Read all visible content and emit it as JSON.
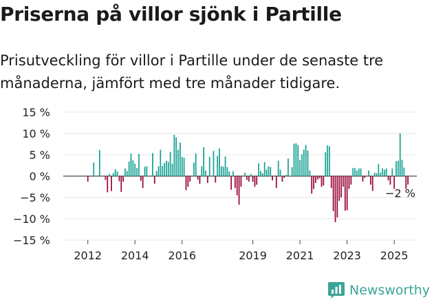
{
  "header": {
    "title": "Priserna på villor sjönk i Partille",
    "subtitle": "Prisutveckling för villor i Partille under de senaste tre månaderna, jämfört med tre månader tidigare."
  },
  "brand": {
    "name": "Newsworthy",
    "icon": "newsworthy-logo-icon",
    "color": "#3aa597"
  },
  "chart_data": {
    "type": "bar",
    "x_start": "2011-01",
    "x_end": "2025-12",
    "x_label_months": [
      "2012-01",
      "2014-01",
      "2016-01",
      "2019-01",
      "2021-01",
      "2023-01",
      "2025-01"
    ],
    "x_tick_labels": [
      "2012",
      "2014",
      "2016",
      "2019",
      "2021",
      "2023",
      "2025"
    ],
    "ylim": [
      -15,
      15
    ],
    "y_ticks": [
      15,
      10,
      5,
      0,
      -5,
      -10,
      -15
    ],
    "y_tick_labels": [
      "15 %",
      "10 %",
      "5 %",
      "0 %",
      "−5 %",
      "−10 %",
      "−15 %"
    ],
    "grid": true,
    "colors": {
      "positive": "#1aa393",
      "negative": "#9c0a3c"
    },
    "series": [
      {
        "values": [
          {
            "x": "2012-01",
            "y": -1.3
          },
          {
            "x": "2012-04",
            "y": 3.2
          },
          {
            "x": "2012-07",
            "y": 6.1
          },
          {
            "x": "2012-10",
            "y": -0.9
          },
          {
            "x": "2012-11",
            "y": -3.8
          },
          {
            "x": "2012-12",
            "y": 0.5
          },
          {
            "x": "2013-01",
            "y": -3.5
          },
          {
            "x": "2013-02",
            "y": 0.7
          },
          {
            "x": "2013-03",
            "y": 1.6
          },
          {
            "x": "2013-04",
            "y": 1.1
          },
          {
            "x": "2013-05",
            "y": -1.2
          },
          {
            "x": "2013-06",
            "y": -3.7
          },
          {
            "x": "2013-07",
            "y": -1.3
          },
          {
            "x": "2013-08",
            "y": 1.8
          },
          {
            "x": "2013-09",
            "y": 1.2
          },
          {
            "x": "2013-10",
            "y": 3.4
          },
          {
            "x": "2013-11",
            "y": 5.3
          },
          {
            "x": "2013-12",
            "y": 3.7
          },
          {
            "x": "2014-01",
            "y": 2.9
          },
          {
            "x": "2014-02",
            "y": 1.9
          },
          {
            "x": "2014-03",
            "y": 5.2
          },
          {
            "x": "2014-04",
            "y": -1.1
          },
          {
            "x": "2014-05",
            "y": -2.8
          },
          {
            "x": "2014-06",
            "y": 2.2
          },
          {
            "x": "2014-07",
            "y": 2.3
          },
          {
            "x": "2014-10",
            "y": 5.4
          },
          {
            "x": "2014-11",
            "y": -1.8
          },
          {
            "x": "2014-12",
            "y": 1.2
          },
          {
            "x": "2015-01",
            "y": 2.3
          },
          {
            "x": "2015-02",
            "y": 6.2
          },
          {
            "x": "2015-03",
            "y": 2.4
          },
          {
            "x": "2015-04",
            "y": 3.1
          },
          {
            "x": "2015-05",
            "y": 3.6
          },
          {
            "x": "2015-06",
            "y": 3.3
          },
          {
            "x": "2015-07",
            "y": 5.7
          },
          {
            "x": "2015-08",
            "y": 2.9
          },
          {
            "x": "2015-09",
            "y": 9.7
          },
          {
            "x": "2015-10",
            "y": 9.1
          },
          {
            "x": "2015-11",
            "y": 6.2
          },
          {
            "x": "2015-12",
            "y": 7.9
          },
          {
            "x": "2016-01",
            "y": 4.5
          },
          {
            "x": "2016-02",
            "y": 4.3
          },
          {
            "x": "2016-03",
            "y": -3.3
          },
          {
            "x": "2016-04",
            "y": -2.5
          },
          {
            "x": "2016-05",
            "y": -1.3
          },
          {
            "x": "2016-07",
            "y": 3.2
          },
          {
            "x": "2016-08",
            "y": 5.3
          },
          {
            "x": "2016-09",
            "y": -0.8
          },
          {
            "x": "2016-10",
            "y": -1.8
          },
          {
            "x": "2016-11",
            "y": 2.3
          },
          {
            "x": "2016-12",
            "y": 6.8
          },
          {
            "x": "2017-01",
            "y": 1.3
          },
          {
            "x": "2017-02",
            "y": -1.6
          },
          {
            "x": "2017-03",
            "y": 4.5
          },
          {
            "x": "2017-05",
            "y": 5.9
          },
          {
            "x": "2017-06",
            "y": -1.5
          },
          {
            "x": "2017-07",
            "y": 4.7
          },
          {
            "x": "2017-08",
            "y": 6.5
          },
          {
            "x": "2017-09",
            "y": 2.3
          },
          {
            "x": "2017-10",
            "y": 2.2
          },
          {
            "x": "2017-11",
            "y": 4.6
          },
          {
            "x": "2017-12",
            "y": 2.1
          },
          {
            "x": "2018-01",
            "y": 1.1
          },
          {
            "x": "2018-02",
            "y": -3.2
          },
          {
            "x": "2018-03",
            "y": 1.2
          },
          {
            "x": "2018-04",
            "y": -2.8
          },
          {
            "x": "2018-05",
            "y": -4.5
          },
          {
            "x": "2018-06",
            "y": -6.7
          },
          {
            "x": "2018-07",
            "y": -2.5
          },
          {
            "x": "2018-09",
            "y": 0.8
          },
          {
            "x": "2018-10",
            "y": -0.9
          },
          {
            "x": "2018-11",
            "y": -1.3
          },
          {
            "x": "2018-12",
            "y": 0.5
          },
          {
            "x": "2019-01",
            "y": -1.3
          },
          {
            "x": "2019-02",
            "y": -2.5
          },
          {
            "x": "2019-03",
            "y": -2.0
          },
          {
            "x": "2019-04",
            "y": 3.0
          },
          {
            "x": "2019-05",
            "y": 1.2
          },
          {
            "x": "2019-06",
            "y": 0.7
          },
          {
            "x": "2019-07",
            "y": 3.3
          },
          {
            "x": "2019-08",
            "y": 1.5
          },
          {
            "x": "2019-09",
            "y": 2.3
          },
          {
            "x": "2019-10",
            "y": 2.1
          },
          {
            "x": "2019-11",
            "y": -1.0
          },
          {
            "x": "2020-01",
            "y": -2.8
          },
          {
            "x": "2020-02",
            "y": 3.6
          },
          {
            "x": "2020-03",
            "y": 1.5
          },
          {
            "x": "2020-04",
            "y": -1.3
          },
          {
            "x": "2020-05",
            "y": -0.4
          },
          {
            "x": "2020-06",
            "y": 0.3
          },
          {
            "x": "2020-07",
            "y": 4.1
          },
          {
            "x": "2020-09",
            "y": 2.1
          },
          {
            "x": "2020-10",
            "y": 7.6
          },
          {
            "x": "2020-11",
            "y": 7.7
          },
          {
            "x": "2020-12",
            "y": 7.3
          },
          {
            "x": "2021-01",
            "y": 3.8
          },
          {
            "x": "2021-02",
            "y": 5.1
          },
          {
            "x": "2021-03",
            "y": 6.2
          },
          {
            "x": "2021-04",
            "y": 7.3
          },
          {
            "x": "2021-05",
            "y": 6.0
          },
          {
            "x": "2021-06",
            "y": 1.3
          },
          {
            "x": "2021-07",
            "y": -4.1
          },
          {
            "x": "2021-08",
            "y": -3.0
          },
          {
            "x": "2021-09",
            "y": -1.6
          },
          {
            "x": "2021-10",
            "y": -0.8
          },
          {
            "x": "2021-11",
            "y": -0.5
          },
          {
            "x": "2021-12",
            "y": -2.5
          },
          {
            "x": "2022-01",
            "y": -2.2
          },
          {
            "x": "2022-02",
            "y": 5.6
          },
          {
            "x": "2022-03",
            "y": 7.2
          },
          {
            "x": "2022-04",
            "y": 7.0
          },
          {
            "x": "2022-05",
            "y": -2.8
          },
          {
            "x": "2022-06",
            "y": -8.2
          },
          {
            "x": "2022-07",
            "y": -10.8
          },
          {
            "x": "2022-08",
            "y": -9.7
          },
          {
            "x": "2022-09",
            "y": -5.8
          },
          {
            "x": "2022-10",
            "y": -5.0
          },
          {
            "x": "2022-11",
            "y": -2.5
          },
          {
            "x": "2022-12",
            "y": -8.1
          },
          {
            "x": "2023-01",
            "y": -8.0
          },
          {
            "x": "2023-02",
            "y": -3.0
          },
          {
            "x": "2023-03",
            "y": -2.0
          },
          {
            "x": "2023-04",
            "y": 1.9
          },
          {
            "x": "2023-05",
            "y": 1.9
          },
          {
            "x": "2023-06",
            "y": 1.3
          },
          {
            "x": "2023-07",
            "y": 1.8
          },
          {
            "x": "2023-08",
            "y": 1.8
          },
          {
            "x": "2023-09",
            "y": -1.3
          },
          {
            "x": "2023-10",
            "y": -0.4
          },
          {
            "x": "2023-12",
            "y": 1.3
          },
          {
            "x": "2024-01",
            "y": -2.0
          },
          {
            "x": "2024-02",
            "y": -3.5
          },
          {
            "x": "2024-03",
            "y": 0.8
          },
          {
            "x": "2024-04",
            "y": 0.7
          },
          {
            "x": "2024-05",
            "y": 2.8
          },
          {
            "x": "2024-06",
            "y": 0.8
          },
          {
            "x": "2024-07",
            "y": 1.8
          },
          {
            "x": "2024-08",
            "y": 1.5
          },
          {
            "x": "2024-09",
            "y": 1.8
          },
          {
            "x": "2024-10",
            "y": -1.0
          },
          {
            "x": "2024-11",
            "y": -2.0
          },
          {
            "x": "2024-12",
            "y": 1.8
          },
          {
            "x": "2025-01",
            "y": -3.0
          },
          {
            "x": "2025-02",
            "y": 3.5
          },
          {
            "x": "2025-03",
            "y": 3.6
          },
          {
            "x": "2025-04",
            "y": 10.0
          },
          {
            "x": "2025-05",
            "y": 3.8
          },
          {
            "x": "2025-06",
            "y": 2.0
          },
          {
            "x": "2025-07",
            "y": -3.0
          },
          {
            "x": "2025-08",
            "y": -2.0
          }
        ]
      }
    ],
    "annotations": [
      {
        "x": "2025-08",
        "y": -2.0,
        "text": "−2 %"
      }
    ]
  }
}
